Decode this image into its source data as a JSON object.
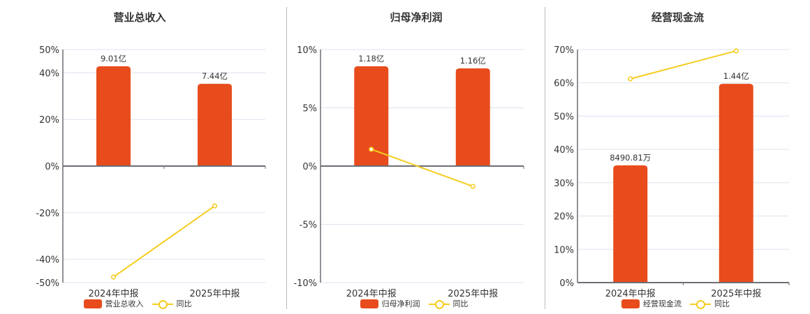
{
  "colors": {
    "bar": "#e84c1c",
    "line": "#f5cd1f",
    "grid": "#dde3ee",
    "axis": "#6b6e75"
  },
  "legend": {
    "yoy_label": "同比"
  },
  "chart_data": [
    {
      "type": "bar+line",
      "title": "营业总收入",
      "categories": [
        "2024年中报",
        "2025年中报"
      ],
      "series": [
        {
          "name": "营业总收入",
          "type": "bar",
          "values": [
            42.8,
            35.3
          ],
          "labels": [
            "9.01亿",
            "7.44亿"
          ]
        },
        {
          "name": "同比",
          "type": "line",
          "values": [
            -47.6,
            -17.1
          ]
        }
      ],
      "yticks": [
        "50%",
        "40%",
        "20%",
        "0%",
        "-20%",
        "-40%",
        "-50%"
      ],
      "ytick_values": [
        50,
        40,
        20,
        0,
        -20,
        -40,
        -50
      ],
      "ylim": [
        -50,
        50
      ],
      "grid": true,
      "legend_position": "bottom"
    },
    {
      "type": "bar+line",
      "title": "归母净利润",
      "categories": [
        "2024年中报",
        "2025年中报"
      ],
      "series": [
        {
          "name": "归母净利润",
          "type": "bar",
          "values": [
            8.56,
            8.38
          ],
          "labels": [
            "1.18亿",
            "1.16亿"
          ]
        },
        {
          "name": "同比",
          "type": "line",
          "values": [
            1.44,
            -1.74
          ]
        }
      ],
      "yticks": [
        "10%",
        "5%",
        "0%",
        "-5%",
        "-10%"
      ],
      "ytick_values": [
        10,
        5,
        0,
        -5,
        -10
      ],
      "ylim": [
        -10,
        10
      ],
      "grid": true,
      "legend_position": "bottom"
    },
    {
      "type": "bar+line",
      "title": "经营现金流",
      "categories": [
        "2024年中报",
        "2025年中报"
      ],
      "series": [
        {
          "name": "经营现金流",
          "type": "bar",
          "values": [
            35.2,
            59.7
          ],
          "labels": [
            "8490.81万",
            "1.44亿"
          ]
        },
        {
          "name": "同比",
          "type": "line",
          "values": [
            61.2,
            69.6
          ]
        }
      ],
      "yticks": [
        "70%",
        "60%",
        "50%",
        "40%",
        "30%",
        "20%",
        "10%",
        "0%"
      ],
      "ytick_values": [
        70,
        60,
        50,
        40,
        30,
        20,
        10,
        0
      ],
      "ylim": [
        0,
        70
      ],
      "grid": true,
      "legend_position": "bottom"
    }
  ]
}
